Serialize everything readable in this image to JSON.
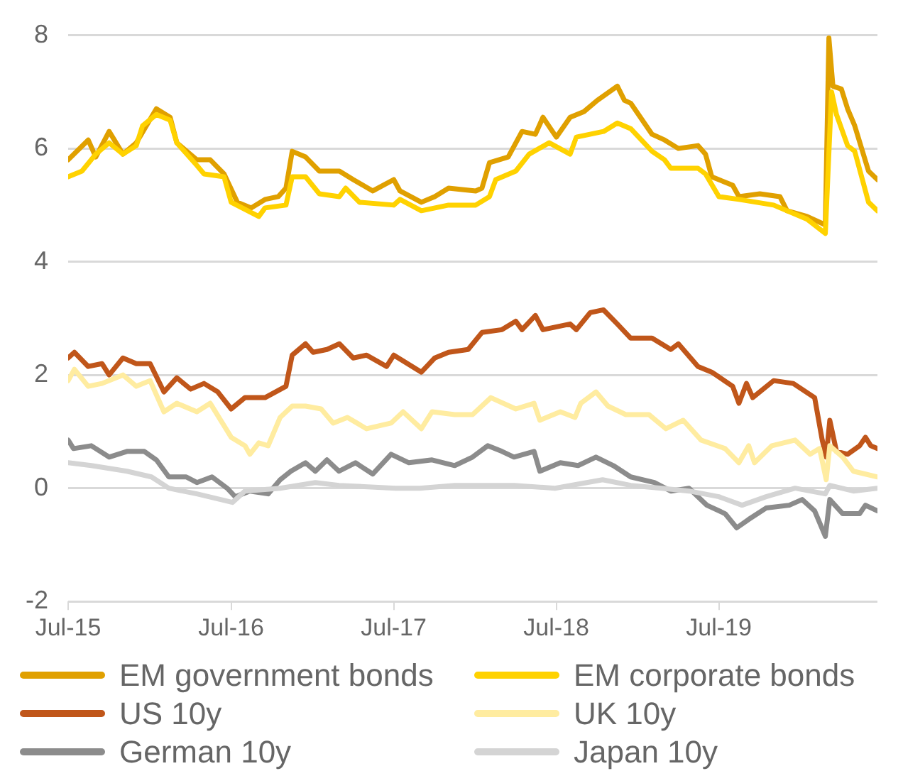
{
  "chart_data": {
    "type": "line",
    "xlim": [
      "2015-07-01",
      "2020-06-21"
    ],
    "xticks": [
      {
        "value": "2015-07-01",
        "label": "Jul-15"
      },
      {
        "value": "2016-07-01",
        "label": "Jul-16"
      },
      {
        "value": "2017-07-01",
        "label": "Jul-17"
      },
      {
        "value": "2018-07-01",
        "label": "Jul-18"
      },
      {
        "value": "2019-07-01",
        "label": "Jul-19"
      }
    ],
    "ylim": [
      -2,
      8
    ],
    "yticks": [
      -2,
      0,
      2,
      4,
      6,
      8
    ],
    "grid": "y",
    "legend": "bottom",
    "marker": "none",
    "line_style": "solid",
    "series": [
      {
        "name": "EM government bonds",
        "color": "#e0a000",
        "x": [
          "2015-07-01",
          "2015-08-15",
          "2015-09-01",
          "2015-10-01",
          "2015-11-01",
          "2015-12-01",
          "2016-01-15",
          "2016-02-15",
          "2016-03-01",
          "2016-04-15",
          "2016-05-15",
          "2016-06-15",
          "2016-07-15",
          "2016-08-15",
          "2016-09-15",
          "2016-10-15",
          "2016-11-01",
          "2016-11-15",
          "2016-12-15",
          "2017-01-15",
          "2017-03-01",
          "2017-04-01",
          "2017-05-15",
          "2017-07-01",
          "2017-07-15",
          "2017-09-01",
          "2017-10-01",
          "2017-11-01",
          "2018-01-01",
          "2018-01-15",
          "2018-02-01",
          "2018-03-15",
          "2018-04-15",
          "2018-05-15",
          "2018-06-01",
          "2018-07-01",
          "2018-08-01",
          "2018-09-01",
          "2018-10-01",
          "2018-11-15",
          "2018-12-01",
          "2018-12-15",
          "2019-02-01",
          "2019-03-01",
          "2019-04-01",
          "2019-05-15",
          "2019-06-01",
          "2019-06-15",
          "2019-08-01",
          "2019-08-15",
          "2019-10-01",
          "2019-11-15",
          "2019-12-01",
          "2020-01-15",
          "2020-02-25",
          "2020-03-04",
          "2020-03-13",
          "2020-04-01",
          "2020-04-15",
          "2020-05-01",
          "2020-06-01",
          "2020-06-21"
        ],
        "values": [
          5.8,
          6.15,
          5.85,
          6.3,
          5.9,
          6.1,
          6.7,
          6.55,
          6.1,
          5.8,
          5.8,
          5.55,
          5.05,
          4.95,
          5.1,
          5.15,
          5.3,
          5.95,
          5.85,
          5.6,
          5.6,
          5.45,
          5.25,
          5.45,
          5.25,
          5.05,
          5.15,
          5.3,
          5.25,
          5.3,
          5.75,
          5.85,
          6.3,
          6.25,
          6.55,
          6.2,
          6.55,
          6.65,
          6.85,
          7.1,
          6.85,
          6.8,
          6.25,
          6.15,
          6.0,
          6.05,
          5.9,
          5.5,
          5.35,
          5.15,
          5.2,
          5.15,
          4.9,
          4.8,
          4.65,
          7.95,
          7.1,
          7.05,
          6.7,
          6.4,
          5.6,
          5.45
        ]
      },
      {
        "name": "EM corporate bonds",
        "color": "#ffd200",
        "x": [
          "2015-07-01",
          "2015-08-01",
          "2015-09-01",
          "2015-10-01",
          "2015-11-01",
          "2015-12-01",
          "2015-12-15",
          "2016-01-15",
          "2016-02-15",
          "2016-03-01",
          "2016-04-15",
          "2016-05-01",
          "2016-06-15",
          "2016-07-01",
          "2016-09-01",
          "2016-09-15",
          "2016-11-01",
          "2016-11-15",
          "2016-12-15",
          "2017-01-15",
          "2017-03-01",
          "2017-03-15",
          "2017-04-15",
          "2017-07-01",
          "2017-07-15",
          "2017-09-01",
          "2017-11-01",
          "2018-01-01",
          "2018-02-01",
          "2018-02-15",
          "2018-04-01",
          "2018-05-01",
          "2018-06-15",
          "2018-08-01",
          "2018-08-15",
          "2018-10-15",
          "2018-11-15",
          "2018-12-15",
          "2019-02-01",
          "2019-03-01",
          "2019-03-15",
          "2019-05-15",
          "2019-06-01",
          "2019-07-01",
          "2019-08-15",
          "2019-11-01",
          "2019-12-01",
          "2020-01-15",
          "2020-02-25",
          "2020-03-10",
          "2020-03-21",
          "2020-04-15",
          "2020-05-01",
          "2020-06-01",
          "2020-06-21"
        ],
        "values": [
          5.5,
          5.6,
          5.9,
          6.1,
          5.9,
          6.05,
          6.4,
          6.6,
          6.5,
          6.1,
          5.7,
          5.55,
          5.5,
          5.05,
          4.8,
          4.95,
          5.0,
          5.5,
          5.5,
          5.2,
          5.15,
          5.3,
          5.05,
          5.0,
          5.1,
          4.9,
          5.0,
          5.0,
          5.15,
          5.45,
          5.6,
          5.9,
          6.1,
          5.9,
          6.2,
          6.3,
          6.45,
          6.35,
          5.95,
          5.8,
          5.65,
          5.65,
          5.55,
          5.15,
          5.1,
          5.0,
          4.9,
          4.75,
          4.5,
          7.0,
          6.6,
          6.05,
          5.95,
          5.05,
          4.9
        ]
      },
      {
        "name": "US 10y",
        "color": "#c0561a",
        "x": [
          "2015-07-01",
          "2015-07-15",
          "2015-08-15",
          "2015-09-15",
          "2015-10-01",
          "2015-11-01",
          "2015-12-01",
          "2016-01-01",
          "2016-02-01",
          "2016-03-01",
          "2016-04-01",
          "2016-05-01",
          "2016-06-01",
          "2016-07-01",
          "2016-08-01",
          "2016-09-15",
          "2016-11-01",
          "2016-11-15",
          "2016-12-15",
          "2017-01-01",
          "2017-02-01",
          "2017-03-01",
          "2017-04-01",
          "2017-05-01",
          "2017-06-15",
          "2017-07-01",
          "2017-09-01",
          "2017-10-01",
          "2017-11-01",
          "2017-12-15",
          "2018-01-15",
          "2018-03-01",
          "2018-04-01",
          "2018-04-15",
          "2018-05-15",
          "2018-06-01",
          "2018-08-01",
          "2018-08-15",
          "2018-09-15",
          "2018-10-15",
          "2018-11-15",
          "2018-12-15",
          "2019-02-01",
          "2019-03-15",
          "2019-04-01",
          "2019-05-15",
          "2019-06-15",
          "2019-08-01",
          "2019-08-15",
          "2019-09-01",
          "2019-09-15",
          "2019-11-01",
          "2019-12-15",
          "2020-02-01",
          "2020-02-18",
          "2020-02-27",
          "2020-03-06",
          "2020-03-21",
          "2020-04-15",
          "2020-05-12",
          "2020-05-25",
          "2020-06-06",
          "2020-06-21"
        ],
        "values": [
          2.3,
          2.4,
          2.15,
          2.2,
          2.0,
          2.3,
          2.2,
          2.2,
          1.7,
          1.95,
          1.75,
          1.85,
          1.7,
          1.4,
          1.6,
          1.6,
          1.8,
          2.35,
          2.55,
          2.4,
          2.45,
          2.55,
          2.3,
          2.35,
          2.15,
          2.35,
          2.05,
          2.3,
          2.4,
          2.45,
          2.75,
          2.8,
          2.95,
          2.8,
          3.05,
          2.8,
          2.9,
          2.8,
          3.1,
          3.15,
          2.9,
          2.65,
          2.65,
          2.45,
          2.55,
          2.15,
          2.05,
          1.8,
          1.5,
          1.85,
          1.6,
          1.9,
          1.85,
          1.6,
          0.85,
          0.55,
          1.2,
          0.65,
          0.6,
          0.75,
          0.9,
          0.75,
          0.7
        ]
      },
      {
        "name": "UK 10y",
        "color": "#ffeca0",
        "x": [
          "2015-07-01",
          "2015-07-15",
          "2015-08-15",
          "2015-09-15",
          "2015-11-01",
          "2015-12-01",
          "2016-01-01",
          "2016-02-01",
          "2016-03-01",
          "2016-04-15",
          "2016-05-15",
          "2016-07-01",
          "2016-08-01",
          "2016-08-12",
          "2016-09-01",
          "2016-09-22",
          "2016-10-19",
          "2016-11-15",
          "2016-12-15",
          "2017-01-19",
          "2017-02-15",
          "2017-03-19",
          "2017-05-01",
          "2017-06-25",
          "2017-07-22",
          "2017-09-01",
          "2017-09-25",
          "2017-11-15",
          "2017-12-25",
          "2018-02-04",
          "2018-04-01",
          "2018-05-12",
          "2018-05-25",
          "2018-07-10",
          "2018-08-12",
          "2018-08-25",
          "2018-09-28",
          "2018-10-25",
          "2018-12-04",
          "2019-01-25",
          "2019-03-04",
          "2019-04-12",
          "2019-05-22",
          "2019-07-15",
          "2019-08-15",
          "2019-09-06",
          "2019-09-19",
          "2019-10-28",
          "2019-12-19",
          "2020-01-22",
          "2020-02-12",
          "2020-02-27",
          "2020-03-06",
          "2020-04-04",
          "2020-04-28",
          "2020-05-25",
          "2020-06-21"
        ],
        "values": [
          1.9,
          2.1,
          1.8,
          1.85,
          2.0,
          1.8,
          1.9,
          1.35,
          1.5,
          1.35,
          1.5,
          0.9,
          0.75,
          0.6,
          0.8,
          0.75,
          1.25,
          1.45,
          1.45,
          1.4,
          1.15,
          1.25,
          1.05,
          1.15,
          1.35,
          1.05,
          1.35,
          1.3,
          1.3,
          1.6,
          1.4,
          1.5,
          1.2,
          1.35,
          1.25,
          1.5,
          1.7,
          1.45,
          1.3,
          1.3,
          1.05,
          1.2,
          0.85,
          0.7,
          0.45,
          0.75,
          0.45,
          0.75,
          0.85,
          0.6,
          0.7,
          0.15,
          0.75,
          0.55,
          0.3,
          0.25,
          0.2
        ]
      },
      {
        "name": "German 10y",
        "color": "#8c8c8c",
        "x": [
          "2015-07-01",
          "2015-07-13",
          "2015-08-22",
          "2015-10-01",
          "2015-11-10",
          "2015-12-19",
          "2016-01-15",
          "2016-02-12",
          "2016-03-22",
          "2016-04-15",
          "2016-05-19",
          "2016-06-22",
          "2016-07-10",
          "2016-08-12",
          "2016-09-22",
          "2016-10-19",
          "2016-11-12",
          "2016-12-15",
          "2017-01-06",
          "2017-02-01",
          "2017-02-28",
          "2017-04-06",
          "2017-05-15",
          "2017-06-25",
          "2017-08-04",
          "2017-09-25",
          "2017-11-15",
          "2017-12-25",
          "2018-01-28",
          "2018-03-01",
          "2018-03-28",
          "2018-05-12",
          "2018-05-25",
          "2018-07-10",
          "2018-08-19",
          "2018-09-28",
          "2018-11-06",
          "2018-12-15",
          "2019-02-06",
          "2019-03-15",
          "2019-04-25",
          "2019-06-04",
          "2019-07-15",
          "2019-08-10",
          "2019-09-06",
          "2019-10-15",
          "2019-12-06",
          "2020-01-04",
          "2020-02-01",
          "2020-02-25",
          "2020-03-06",
          "2020-04-04",
          "2020-05-12",
          "2020-05-25",
          "2020-06-21"
        ],
        "values": [
          0.85,
          0.7,
          0.75,
          0.55,
          0.65,
          0.65,
          0.5,
          0.2,
          0.2,
          0.1,
          0.2,
          0.0,
          -0.15,
          -0.05,
          -0.1,
          0.15,
          0.3,
          0.45,
          0.3,
          0.5,
          0.3,
          0.45,
          0.25,
          0.6,
          0.45,
          0.5,
          0.4,
          0.55,
          0.75,
          0.65,
          0.55,
          0.65,
          0.3,
          0.45,
          0.4,
          0.55,
          0.4,
          0.2,
          0.1,
          -0.05,
          0.0,
          -0.3,
          -0.45,
          -0.7,
          -0.55,
          -0.35,
          -0.3,
          -0.2,
          -0.4,
          -0.85,
          -0.2,
          -0.45,
          -0.45,
          -0.3,
          -0.4
        ]
      },
      {
        "name": "Japan 10y",
        "color": "#d4d4d4",
        "x": [
          "2015-07-01",
          "2015-08-22",
          "2015-11-10",
          "2016-01-04",
          "2016-02-12",
          "2016-04-15",
          "2016-07-04",
          "2016-08-01",
          "2016-10-19",
          "2017-01-06",
          "2017-02-28",
          "2017-07-06",
          "2017-08-28",
          "2017-11-15",
          "2018-03-28",
          "2018-06-28",
          "2018-10-13",
          "2018-12-15",
          "2019-02-22",
          "2019-04-25",
          "2019-07-01",
          "2019-08-22",
          "2019-10-15",
          "2019-12-19",
          "2020-02-25",
          "2020-03-06",
          "2020-04-28",
          "2020-06-21"
        ],
        "values": [
          0.45,
          0.4,
          0.3,
          0.2,
          0.0,
          -0.1,
          -0.25,
          -0.05,
          0.0,
          0.1,
          0.05,
          0.0,
          0.0,
          0.05,
          0.05,
          0.0,
          0.15,
          0.05,
          0.0,
          -0.05,
          -0.15,
          -0.3,
          -0.15,
          0.0,
          -0.1,
          0.05,
          -0.05,
          0.0
        ]
      }
    ]
  }
}
